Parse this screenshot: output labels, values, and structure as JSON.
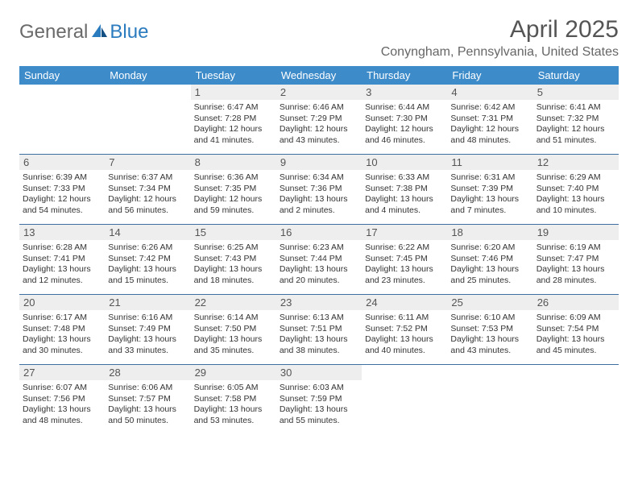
{
  "logo": {
    "text1": "General",
    "text2": "Blue"
  },
  "title": "April 2025",
  "location": "Conyngham, Pennsylvania, United States",
  "colors": {
    "header_bg": "#3d8bc9",
    "header_text": "#ffffff",
    "daynum_bg": "#eeeeee",
    "daynum_text": "#555555",
    "cell_border": "#3d6fa0",
    "body_text": "#333333",
    "logo_gray": "#6a6a6a",
    "logo_blue": "#2b7bbf"
  },
  "weekdays": [
    "Sunday",
    "Monday",
    "Tuesday",
    "Wednesday",
    "Thursday",
    "Friday",
    "Saturday"
  ],
  "weeks": [
    [
      {
        "empty": true
      },
      {
        "empty": true
      },
      {
        "day": "1",
        "sunrise": "Sunrise: 6:47 AM",
        "sunset": "Sunset: 7:28 PM",
        "daylight": "Daylight: 12 hours and 41 minutes."
      },
      {
        "day": "2",
        "sunrise": "Sunrise: 6:46 AM",
        "sunset": "Sunset: 7:29 PM",
        "daylight": "Daylight: 12 hours and 43 minutes."
      },
      {
        "day": "3",
        "sunrise": "Sunrise: 6:44 AM",
        "sunset": "Sunset: 7:30 PM",
        "daylight": "Daylight: 12 hours and 46 minutes."
      },
      {
        "day": "4",
        "sunrise": "Sunrise: 6:42 AM",
        "sunset": "Sunset: 7:31 PM",
        "daylight": "Daylight: 12 hours and 48 minutes."
      },
      {
        "day": "5",
        "sunrise": "Sunrise: 6:41 AM",
        "sunset": "Sunset: 7:32 PM",
        "daylight": "Daylight: 12 hours and 51 minutes."
      }
    ],
    [
      {
        "day": "6",
        "sunrise": "Sunrise: 6:39 AM",
        "sunset": "Sunset: 7:33 PM",
        "daylight": "Daylight: 12 hours and 54 minutes."
      },
      {
        "day": "7",
        "sunrise": "Sunrise: 6:37 AM",
        "sunset": "Sunset: 7:34 PM",
        "daylight": "Daylight: 12 hours and 56 minutes."
      },
      {
        "day": "8",
        "sunrise": "Sunrise: 6:36 AM",
        "sunset": "Sunset: 7:35 PM",
        "daylight": "Daylight: 12 hours and 59 minutes."
      },
      {
        "day": "9",
        "sunrise": "Sunrise: 6:34 AM",
        "sunset": "Sunset: 7:36 PM",
        "daylight": "Daylight: 13 hours and 2 minutes."
      },
      {
        "day": "10",
        "sunrise": "Sunrise: 6:33 AM",
        "sunset": "Sunset: 7:38 PM",
        "daylight": "Daylight: 13 hours and 4 minutes."
      },
      {
        "day": "11",
        "sunrise": "Sunrise: 6:31 AM",
        "sunset": "Sunset: 7:39 PM",
        "daylight": "Daylight: 13 hours and 7 minutes."
      },
      {
        "day": "12",
        "sunrise": "Sunrise: 6:29 AM",
        "sunset": "Sunset: 7:40 PM",
        "daylight": "Daylight: 13 hours and 10 minutes."
      }
    ],
    [
      {
        "day": "13",
        "sunrise": "Sunrise: 6:28 AM",
        "sunset": "Sunset: 7:41 PM",
        "daylight": "Daylight: 13 hours and 12 minutes."
      },
      {
        "day": "14",
        "sunrise": "Sunrise: 6:26 AM",
        "sunset": "Sunset: 7:42 PM",
        "daylight": "Daylight: 13 hours and 15 minutes."
      },
      {
        "day": "15",
        "sunrise": "Sunrise: 6:25 AM",
        "sunset": "Sunset: 7:43 PM",
        "daylight": "Daylight: 13 hours and 18 minutes."
      },
      {
        "day": "16",
        "sunrise": "Sunrise: 6:23 AM",
        "sunset": "Sunset: 7:44 PM",
        "daylight": "Daylight: 13 hours and 20 minutes."
      },
      {
        "day": "17",
        "sunrise": "Sunrise: 6:22 AM",
        "sunset": "Sunset: 7:45 PM",
        "daylight": "Daylight: 13 hours and 23 minutes."
      },
      {
        "day": "18",
        "sunrise": "Sunrise: 6:20 AM",
        "sunset": "Sunset: 7:46 PM",
        "daylight": "Daylight: 13 hours and 25 minutes."
      },
      {
        "day": "19",
        "sunrise": "Sunrise: 6:19 AM",
        "sunset": "Sunset: 7:47 PM",
        "daylight": "Daylight: 13 hours and 28 minutes."
      }
    ],
    [
      {
        "day": "20",
        "sunrise": "Sunrise: 6:17 AM",
        "sunset": "Sunset: 7:48 PM",
        "daylight": "Daylight: 13 hours and 30 minutes."
      },
      {
        "day": "21",
        "sunrise": "Sunrise: 6:16 AM",
        "sunset": "Sunset: 7:49 PM",
        "daylight": "Daylight: 13 hours and 33 minutes."
      },
      {
        "day": "22",
        "sunrise": "Sunrise: 6:14 AM",
        "sunset": "Sunset: 7:50 PM",
        "daylight": "Daylight: 13 hours and 35 minutes."
      },
      {
        "day": "23",
        "sunrise": "Sunrise: 6:13 AM",
        "sunset": "Sunset: 7:51 PM",
        "daylight": "Daylight: 13 hours and 38 minutes."
      },
      {
        "day": "24",
        "sunrise": "Sunrise: 6:11 AM",
        "sunset": "Sunset: 7:52 PM",
        "daylight": "Daylight: 13 hours and 40 minutes."
      },
      {
        "day": "25",
        "sunrise": "Sunrise: 6:10 AM",
        "sunset": "Sunset: 7:53 PM",
        "daylight": "Daylight: 13 hours and 43 minutes."
      },
      {
        "day": "26",
        "sunrise": "Sunrise: 6:09 AM",
        "sunset": "Sunset: 7:54 PM",
        "daylight": "Daylight: 13 hours and 45 minutes."
      }
    ],
    [
      {
        "day": "27",
        "sunrise": "Sunrise: 6:07 AM",
        "sunset": "Sunset: 7:56 PM",
        "daylight": "Daylight: 13 hours and 48 minutes."
      },
      {
        "day": "28",
        "sunrise": "Sunrise: 6:06 AM",
        "sunset": "Sunset: 7:57 PM",
        "daylight": "Daylight: 13 hours and 50 minutes."
      },
      {
        "day": "29",
        "sunrise": "Sunrise: 6:05 AM",
        "sunset": "Sunset: 7:58 PM",
        "daylight": "Daylight: 13 hours and 53 minutes."
      },
      {
        "day": "30",
        "sunrise": "Sunrise: 6:03 AM",
        "sunset": "Sunset: 7:59 PM",
        "daylight": "Daylight: 13 hours and 55 minutes."
      },
      {
        "empty": true
      },
      {
        "empty": true
      },
      {
        "empty": true
      }
    ]
  ]
}
